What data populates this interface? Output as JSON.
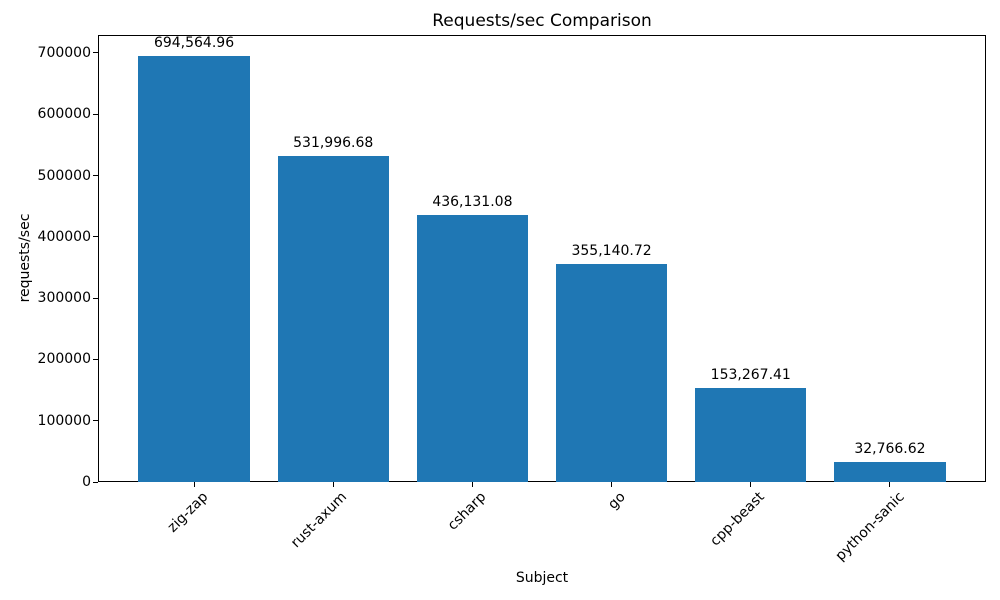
{
  "chart_data": {
    "type": "bar",
    "title": "Requests/sec Comparison",
    "xlabel": "Subject",
    "ylabel": "requests/sec",
    "categories": [
      "zig-zap",
      "rust-axum",
      "csharp",
      "go",
      "cpp-beast",
      "python-sanic"
    ],
    "values": [
      694564.96,
      531996.68,
      436131.08,
      355140.72,
      153267.41,
      32766.62
    ],
    "value_labels": [
      "694,564.96",
      "531,996.68",
      "436,131.08",
      "355,140.72",
      "153,267.41",
      "32,766.62"
    ],
    "y_ticks": [
      0,
      100000,
      200000,
      300000,
      400000,
      500000,
      600000,
      700000
    ],
    "y_tick_labels": [
      "0",
      "100000",
      "200000",
      "300000",
      "400000",
      "500000",
      "600000",
      "700000"
    ],
    "ylim": [
      0,
      729293
    ],
    "bar_color": "#1f77b4",
    "axis_color": "#000000",
    "text_color": "#000000",
    "background_color": "#ffffff",
    "grid": false,
    "legend": false,
    "x_tick_rotation_deg": 45
  }
}
